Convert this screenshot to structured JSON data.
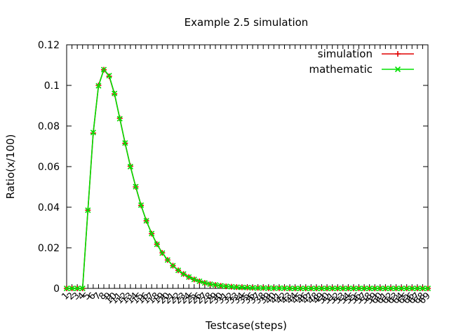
{
  "chart_data": {
    "type": "line",
    "title": "Example 2.5 simulation",
    "xlabel": "Testcase(steps)",
    "ylabel": "Ratio(x/100)",
    "ylim": [
      0,
      0.12
    ],
    "y_ticks": [
      "0",
      "0.02",
      "0.04",
      "0.06",
      "0.08",
      "0.1",
      "0.12"
    ],
    "x_ticks": [
      "1",
      "2",
      "3",
      "4",
      "5",
      "6",
      "7",
      "8",
      "9",
      "10",
      "11",
      "12",
      "13",
      "14",
      "15",
      "16",
      "17",
      "18",
      "19",
      "20",
      "21",
      "22",
      "23",
      "24",
      "25",
      "26",
      "27",
      "28",
      "29",
      "30",
      "31",
      "32",
      "33",
      "34",
      "35",
      "36",
      "37",
      "38",
      "39",
      "40",
      "41",
      "42",
      "43",
      "44",
      "45",
      "46",
      "47",
      "48",
      "49",
      "50",
      "51",
      "52",
      "53",
      "54",
      "55",
      "56",
      "57",
      "58",
      "59",
      "60",
      "61",
      "62",
      "63",
      "64",
      "65",
      "66",
      "67",
      "68",
      "69"
    ],
    "x": [
      1,
      2,
      3,
      4,
      5,
      6,
      7,
      8,
      9,
      10,
      11,
      12,
      13,
      14,
      15,
      16,
      17,
      18,
      19,
      20,
      21,
      22,
      23,
      24,
      25,
      26,
      27,
      28,
      29,
      30,
      31,
      32,
      33,
      34,
      35,
      36,
      37,
      38,
      39,
      40,
      41,
      42,
      43,
      44,
      45,
      46,
      47,
      48,
      49,
      50,
      51,
      52,
      53,
      54,
      55,
      56,
      57,
      58,
      59,
      60,
      61,
      62,
      63,
      64,
      65,
      66,
      67,
      68,
      69
    ],
    "xlim": [
      1,
      69
    ],
    "legend_position": "top-right",
    "grid": false,
    "series": [
      {
        "name": "simulation",
        "color": "#e00000",
        "marker": "plus",
        "values": [
          0,
          0,
          0,
          0,
          0.0385,
          0.0765,
          0.1,
          0.1077,
          0.1045,
          0.0958,
          0.0838,
          0.0715,
          0.0602,
          0.05,
          0.0409,
          0.0333,
          0.027,
          0.0218,
          0.0175,
          0.014,
          0.0112,
          0.0089,
          0.0071,
          0.0056,
          0.0044,
          0.0035,
          0.0027,
          0.0021,
          0.0017,
          0.0013,
          0.001,
          0.0008,
          0.0006,
          0.0005,
          0.0004,
          0.0003,
          0.0002,
          0.0002,
          0.0001,
          0.0001,
          0.0001,
          0.0001,
          0,
          0,
          0,
          0,
          0,
          0,
          0,
          0,
          0,
          0,
          0,
          0,
          0,
          0,
          0,
          0,
          0,
          0,
          0,
          0,
          0,
          0,
          0,
          0,
          0,
          0,
          0
        ]
      },
      {
        "name": "mathematic",
        "color": "#00e000",
        "marker": "x",
        "values": [
          0,
          0,
          0,
          0,
          0.0385,
          0.0768,
          0.0998,
          0.1078,
          0.1048,
          0.096,
          0.0836,
          0.0716,
          0.06,
          0.0501,
          0.041,
          0.0333,
          0.027,
          0.0217,
          0.0174,
          0.014,
          0.0112,
          0.0089,
          0.0071,
          0.0056,
          0.0044,
          0.0035,
          0.0027,
          0.0021,
          0.0017,
          0.0013,
          0.001,
          0.0008,
          0.0006,
          0.0005,
          0.0004,
          0.0003,
          0.0002,
          0.0002,
          0.0001,
          0.0001,
          0.0001,
          0.0001,
          0,
          0,
          0,
          0,
          0,
          0,
          0,
          0,
          0,
          0,
          0,
          0,
          0,
          0,
          0,
          0,
          0,
          0,
          0,
          0,
          0,
          0,
          0,
          0,
          0,
          0,
          0
        ]
      }
    ]
  }
}
